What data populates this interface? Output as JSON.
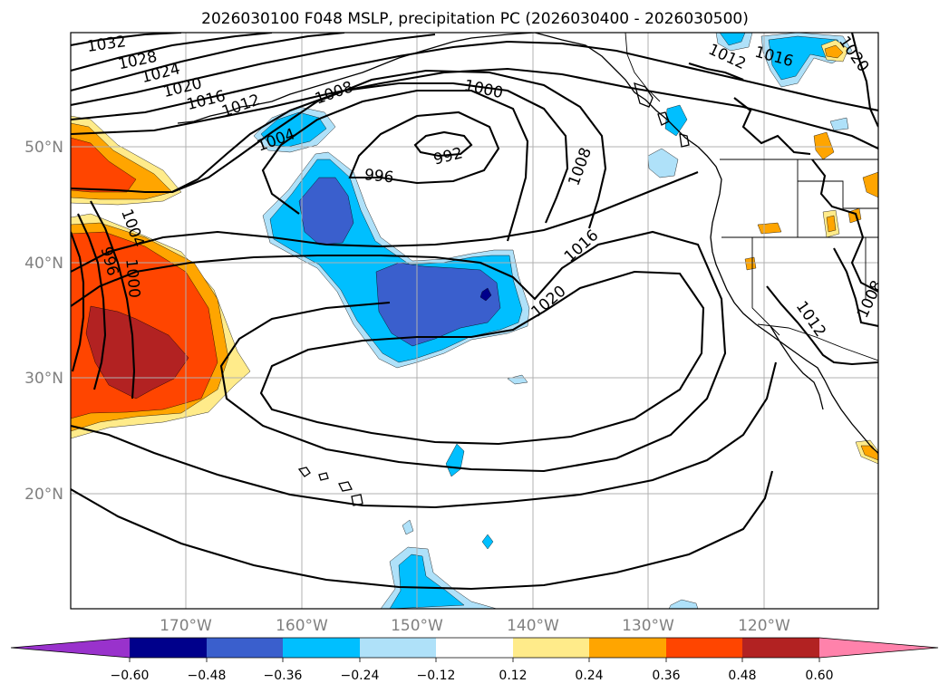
{
  "title": "2026030100 F048 MSLP, precipitation PC (2026030400 - 2026030500)",
  "lat_labels": [
    "50°N",
    "40°N",
    "30°N",
    "20°N"
  ],
  "lon_labels": [
    "170°W",
    "160°W",
    "150°W",
    "140°W",
    "130°W",
    "120°W"
  ],
  "isobar_labels": [
    "1032",
    "1028",
    "1024",
    "1020",
    "1016",
    "1012",
    "1008",
    "1004",
    "1000",
    "996",
    "992",
    "1008",
    "1016",
    "1020",
    "1004",
    "1000",
    "996",
    "1012",
    "1016",
    "1020",
    "1008",
    "1012"
  ],
  "colorbar": {
    "colors": [
      "#9932cc",
      "#00008b",
      "#3a5fcd",
      "#00bfff",
      "#afe1f9",
      "#ffffff",
      "#ffeb8a",
      "#ffa500",
      "#ff4500",
      "#b22222",
      "#ff82ab"
    ],
    "tick_labels": [
      "−0.60",
      "−0.48",
      "−0.36",
      "−0.24",
      "−0.12",
      "0.12",
      "0.24",
      "0.36",
      "0.48",
      "0.60"
    ]
  },
  "precip_colors": {
    "neg_light": "#afe1f9",
    "neg_mid": "#00bfff",
    "neg_strong": "#3a5fcd",
    "neg_max": "#00008b",
    "pos_light": "#ffeb8a",
    "pos_mid": "#ffa500",
    "pos_strong": "#ff4500",
    "pos_max": "#b22222"
  }
}
